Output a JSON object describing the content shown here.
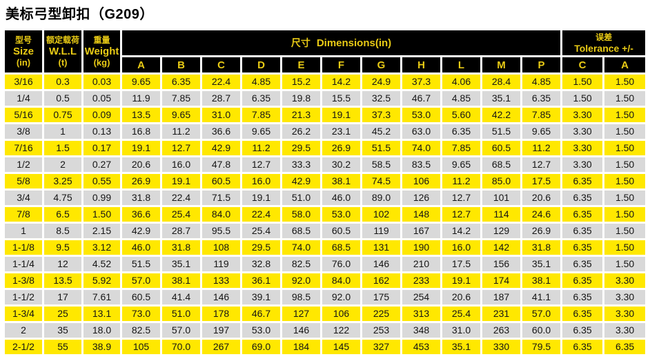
{
  "page": {
    "title": "美标弓型卸扣（G209）"
  },
  "colors": {
    "header_bg": "#000000",
    "header_text": "#e9cb15",
    "row_yellow": "#ffe800",
    "row_gray": "#d9d9d9",
    "body_text": "#151515",
    "page_bg": "#ffffff"
  },
  "table": {
    "header": {
      "size": {
        "zh": "型号",
        "en": "Size",
        "unit": "(in)"
      },
      "wll": {
        "zh": "额定载荷",
        "en": "W.L.L",
        "unit": "(t)"
      },
      "weight": {
        "zh": "重量",
        "en": "Weight",
        "unit": "(kg)"
      },
      "dimensions": {
        "zh": "尺寸",
        "en": "Dimensions(in)"
      },
      "tolerance": {
        "zh": "误差",
        "en": "Tolerance +/-"
      },
      "dimension_columns": [
        "A",
        "B",
        "C",
        "D",
        "E",
        "F",
        "G",
        "H",
        "L",
        "M",
        "P"
      ],
      "tolerance_columns": [
        "C",
        "A"
      ]
    },
    "rows": [
      {
        "cells": [
          "3/16",
          "0.3",
          "0.03",
          "9.65",
          "6.35",
          "22.4",
          "4.85",
          "15.2",
          "14.2",
          "24.9",
          "37.3",
          "4.06",
          "28.4",
          "4.85",
          "1.50",
          "1.50"
        ]
      },
      {
        "cells": [
          "1/4",
          "0.5",
          "0.05",
          "11.9",
          "7.85",
          "28.7",
          "6.35",
          "19.8",
          "15.5",
          "32.5",
          "46.7",
          "4.85",
          "35.1",
          "6.35",
          "1.50",
          "1.50"
        ]
      },
      {
        "cells": [
          "5/16",
          "0.75",
          "0.09",
          "13.5",
          "9.65",
          "31.0",
          "7.85",
          "21.3",
          "19.1",
          "37.3",
          "53.0",
          "5.60",
          "42.2",
          "7.85",
          "3.30",
          "1.50"
        ]
      },
      {
        "cells": [
          "3/8",
          "1",
          "0.13",
          "16.8",
          "11.2",
          "36.6",
          "9.65",
          "26.2",
          "23.1",
          "45.2",
          "63.0",
          "6.35",
          "51.5",
          "9.65",
          "3.30",
          "1.50"
        ]
      },
      {
        "cells": [
          "7/16",
          "1.5",
          "0.17",
          "19.1",
          "12.7",
          "42.9",
          "11.2",
          "29.5",
          "26.9",
          "51.5",
          "74.0",
          "7.85",
          "60.5",
          "11.2",
          "3.30",
          "1.50"
        ]
      },
      {
        "cells": [
          "1/2",
          "2",
          "0.27",
          "20.6",
          "16.0",
          "47.8",
          "12.7",
          "33.3",
          "30.2",
          "58.5",
          "83.5",
          "9.65",
          "68.5",
          "12.7",
          "3.30",
          "1.50"
        ]
      },
      {
        "cells": [
          "5/8",
          "3.25",
          "0.55",
          "26.9",
          "19.1",
          "60.5",
          "16.0",
          "42.9",
          "38.1",
          "74.5",
          "106",
          "11.2",
          "85.0",
          "17.5",
          "6.35",
          "1.50"
        ]
      },
      {
        "cells": [
          "3/4",
          "4.75",
          "0.99",
          "31.8",
          "22.4",
          "71.5",
          "19.1",
          "51.0",
          "46.0",
          "89.0",
          "126",
          "12.7",
          "101",
          "20.6",
          "6.35",
          "1.50"
        ]
      },
      {
        "cells": [
          "7/8",
          "6.5",
          "1.50",
          "36.6",
          "25.4",
          "84.0",
          "22.4",
          "58.0",
          "53.0",
          "102",
          "148",
          "12.7",
          "114",
          "24.6",
          "6.35",
          "1.50"
        ]
      },
      {
        "cells": [
          "1",
          "8.5",
          "2.15",
          "42.9",
          "28.7",
          "95.5",
          "25.4",
          "68.5",
          "60.5",
          "119",
          "167",
          "14.2",
          "129",
          "26.9",
          "6.35",
          "1.50"
        ]
      },
      {
        "cells": [
          "1-1/8",
          "9.5",
          "3.12",
          "46.0",
          "31.8",
          "108",
          "29.5",
          "74.0",
          "68.5",
          "131",
          "190",
          "16.0",
          "142",
          "31.8",
          "6.35",
          "1.50"
        ]
      },
      {
        "cells": [
          "1-1/4",
          "12",
          "4.52",
          "51.5",
          "35.1",
          "119",
          "32.8",
          "82.5",
          "76.0",
          "146",
          "210",
          "17.5",
          "156",
          "35.1",
          "6.35",
          "1.50"
        ]
      },
      {
        "cells": [
          "1-3/8",
          "13.5",
          "5.92",
          "57.0",
          "38.1",
          "133",
          "36.1",
          "92.0",
          "84.0",
          "162",
          "233",
          "19.1",
          "174",
          "38.1",
          "6.35",
          "3.30"
        ]
      },
      {
        "cells": [
          "1-1/2",
          "17",
          "7.61",
          "60.5",
          "41.4",
          "146",
          "39.1",
          "98.5",
          "92.0",
          "175",
          "254",
          "20.6",
          "187",
          "41.1",
          "6.35",
          "3.30"
        ]
      },
      {
        "cells": [
          "1-3/4",
          "25",
          "13.1",
          "73.0",
          "51.0",
          "178",
          "46.7",
          "127",
          "106",
          "225",
          "313",
          "25.4",
          "231",
          "57.0",
          "6.35",
          "3.30"
        ]
      },
      {
        "cells": [
          "2",
          "35",
          "18.0",
          "82.5",
          "57.0",
          "197",
          "53.0",
          "146",
          "122",
          "253",
          "348",
          "31.0",
          "263",
          "60.0",
          "6.35",
          "3.30"
        ]
      },
      {
        "cells": [
          "2-1/2",
          "55",
          "38.9",
          "105",
          "70.0",
          "267",
          "69.0",
          "184",
          "145",
          "327",
          "453",
          "35.1",
          "330",
          "79.5",
          "6.35",
          "6.35"
        ]
      }
    ]
  }
}
